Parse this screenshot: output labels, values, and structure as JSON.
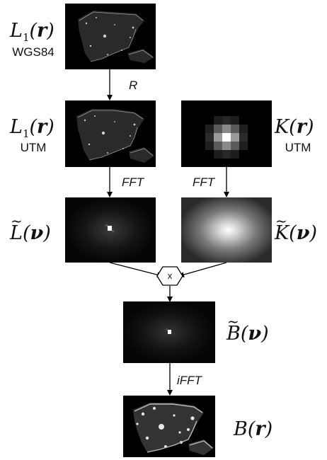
{
  "labels": {
    "l1_wgs84": {
      "caption": "WGS84"
    },
    "l1_utm": {
      "caption": "UTM"
    },
    "k_utm": {
      "caption": "UTM"
    }
  },
  "operations": {
    "reproject": "R",
    "fft_left": "FFT",
    "fft_right": "FFT",
    "ifft": "iFFT",
    "multiply": "x"
  },
  "icons": {
    "multiply_node": "hexagon-multiply-icon"
  }
}
